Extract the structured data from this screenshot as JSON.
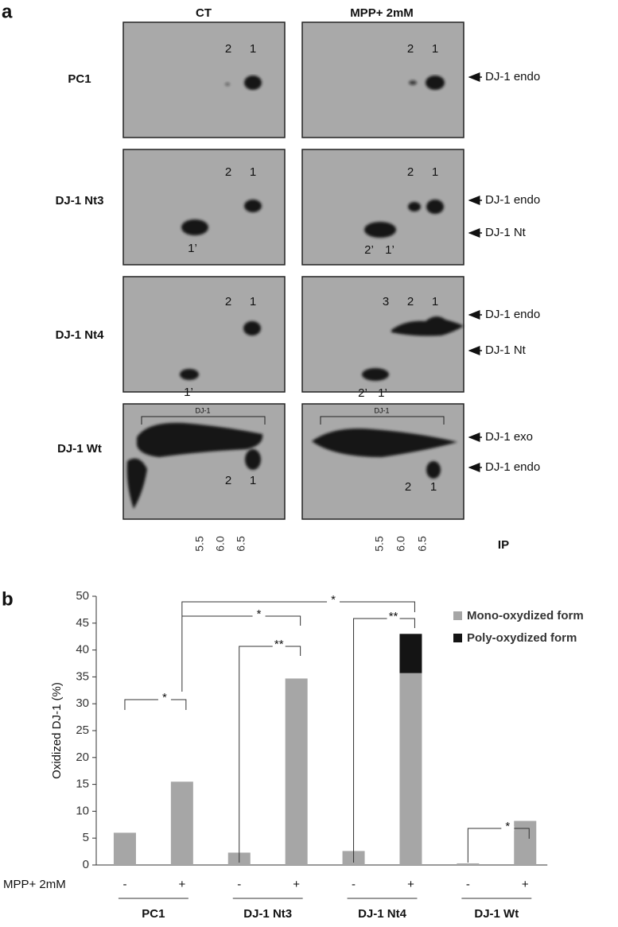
{
  "panel_a": {
    "label": "a",
    "columns": [
      "CT",
      "MPP+ 2mM"
    ],
    "rows": [
      {
        "name": "PC1",
        "ct_spots": [
          "2",
          "1"
        ],
        "mpp_spots": [
          "2",
          "1"
        ],
        "markers": [
          "DJ-1 endo"
        ]
      },
      {
        "name": "DJ-1 Nt3",
        "ct_spots": [
          "2",
          "1",
          "1’"
        ],
        "mpp_spots": [
          "2",
          "1",
          "2’",
          "1’"
        ],
        "markers": [
          "DJ-1 endo",
          "DJ-1 Nt"
        ]
      },
      {
        "name": "DJ-1 Nt4",
        "ct_spots": [
          "2",
          "1",
          "1’"
        ],
        "mpp_spots": [
          "3",
          "2",
          "1",
          "2’",
          "1’"
        ],
        "markers": [
          "DJ-1 endo",
          "DJ-1 Nt"
        ]
      },
      {
        "name": "DJ-1 Wt",
        "ct_spots": [
          "DJ-1",
          "2",
          "1"
        ],
        "mpp_spots": [
          "DJ-1",
          "2",
          "1"
        ],
        "markers": [
          "DJ-1 exo",
          "DJ-1 endo"
        ]
      }
    ],
    "ph_ticks": [
      "5.5",
      "6.0",
      "6.5"
    ],
    "ph_label": "IP"
  },
  "chart_data": {
    "type": "bar",
    "panel_label": "b",
    "y_label": "Oxidized DJ-1 (%)",
    "treatment_label": "MPP+ 2mM",
    "categories": [
      "-",
      "+",
      "-",
      "+",
      "-",
      "+",
      "-",
      "+"
    ],
    "groups": [
      "PC1",
      "DJ-1 Nt3",
      "DJ-1 Nt4",
      "DJ-1 Wt"
    ],
    "stacked": true,
    "series": [
      {
        "name": "Mono-oxydized form",
        "color": "#a6a6a6",
        "values": [
          6,
          15.5,
          2.3,
          34.7,
          2.6,
          35.7,
          0.3,
          8.2
        ]
      },
      {
        "name": "Poly-oxydized form",
        "color": "#141414",
        "values": [
          null,
          null,
          null,
          null,
          null,
          7.3,
          null,
          null
        ]
      }
    ],
    "ylim": [
      0,
      50
    ],
    "yticks": [
      0,
      5,
      10,
      15,
      20,
      25,
      30,
      35,
      40,
      45,
      50
    ],
    "legend": "top-right",
    "annotations": [
      {
        "label": "*",
        "from": 0,
        "to": 1
      },
      {
        "label": "*",
        "from": 1,
        "to": 5
      },
      {
        "label": "*",
        "from": 1,
        "to": 3
      },
      {
        "label": "**",
        "from": 2,
        "to": 3
      },
      {
        "label": "**",
        "from": 4,
        "to": 5
      },
      {
        "label": "*",
        "from": 6,
        "to": 7
      }
    ]
  }
}
